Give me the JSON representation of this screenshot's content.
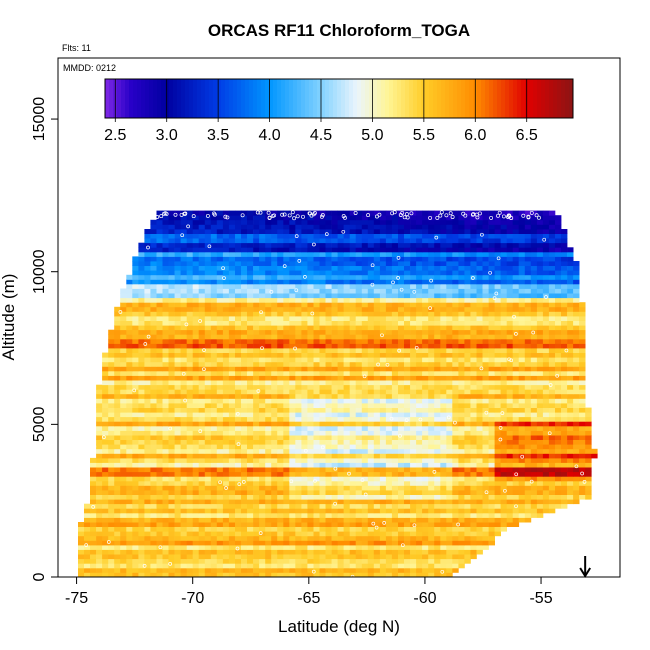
{
  "chart_data": {
    "type": "heatmap",
    "title": "ORCAS RF11 Chloroform_TOGA",
    "info_lines": [
      "Flts: 11",
      "MMDD: 0212"
    ],
    "xlabel": "Latitude (deg N)",
    "ylabel": "Altitude (m)",
    "xlim": [
      -75.8,
      -51.6
    ],
    "ylim": [
      0,
      17000
    ],
    "x_ticks": [
      -75,
      -70,
      -65,
      -60,
      -55
    ],
    "x_tick_labels": [
      "-75",
      "-70",
      "-65",
      "-60",
      "-55"
    ],
    "y_ticks": [
      0,
      5000,
      10000,
      15000
    ],
    "y_tick_labels": [
      "0",
      "5000",
      "10000",
      "15000"
    ],
    "colorbar": {
      "min": 2.4,
      "max": 6.95,
      "ticks": [
        2.5,
        3.0,
        3.5,
        4.0,
        4.5,
        5.0,
        5.5,
        6.0,
        6.5
      ],
      "tick_labels": [
        "2.5",
        "3.0",
        "3.5",
        "4.0",
        "4.5",
        "5.0",
        "5.5",
        "6.0",
        "6.5"
      ],
      "placement": "top, inside plot"
    },
    "arrow_marker": {
      "x": -53.1,
      "direction": "down"
    },
    "domain_outline": {
      "note": "approximate latitude extent of the filled curtain per altitude",
      "altitude": [
        0,
        1500,
        2500,
        4000,
        5500,
        7000,
        8500,
        10000,
        11000,
        12000
      ],
      "lat_left": [
        -75.1,
        -75.0,
        -74.6,
        -74.4,
        -74.3,
        -74.0,
        -73.5,
        -72.8,
        -72.3,
        -71.5
      ],
      "lat_right": [
        -59.0,
        -56.5,
        -53.1,
        -52.8,
        -53.1,
        -53.2,
        -53.3,
        -53.5,
        -54.0,
        -54.5
      ]
    },
    "layers": [
      {
        "altitude_range": [
          11200,
          12000
        ],
        "chloroform_ppt": 3.0
      },
      {
        "altitude_range": [
          10600,
          11200
        ],
        "chloroform_ppt": 3.6
      },
      {
        "altitude_range": [
          9600,
          10600
        ],
        "chloroform_ppt": 4.1
      },
      {
        "altitude_range": [
          9000,
          9600
        ],
        "chloroform_ppt": 4.8
      },
      {
        "altitude_range": [
          8000,
          9000
        ],
        "chloroform_ppt": 5.6
      },
      {
        "altitude_range": [
          7500,
          8000
        ],
        "chloroform_ppt": 6.0
      },
      {
        "altitude_range": [
          5500,
          7500
        ],
        "chloroform_ppt": 5.5
      },
      {
        "altitude_range": [
          3500,
          5500
        ],
        "chloroform_ppt": 5.4
      },
      {
        "altitude_range": [
          2500,
          3500
        ],
        "chloroform_ppt": 5.7
      },
      {
        "altitude_range": [
          0,
          2500
        ],
        "chloroform_ppt": 5.6
      }
    ]
  }
}
